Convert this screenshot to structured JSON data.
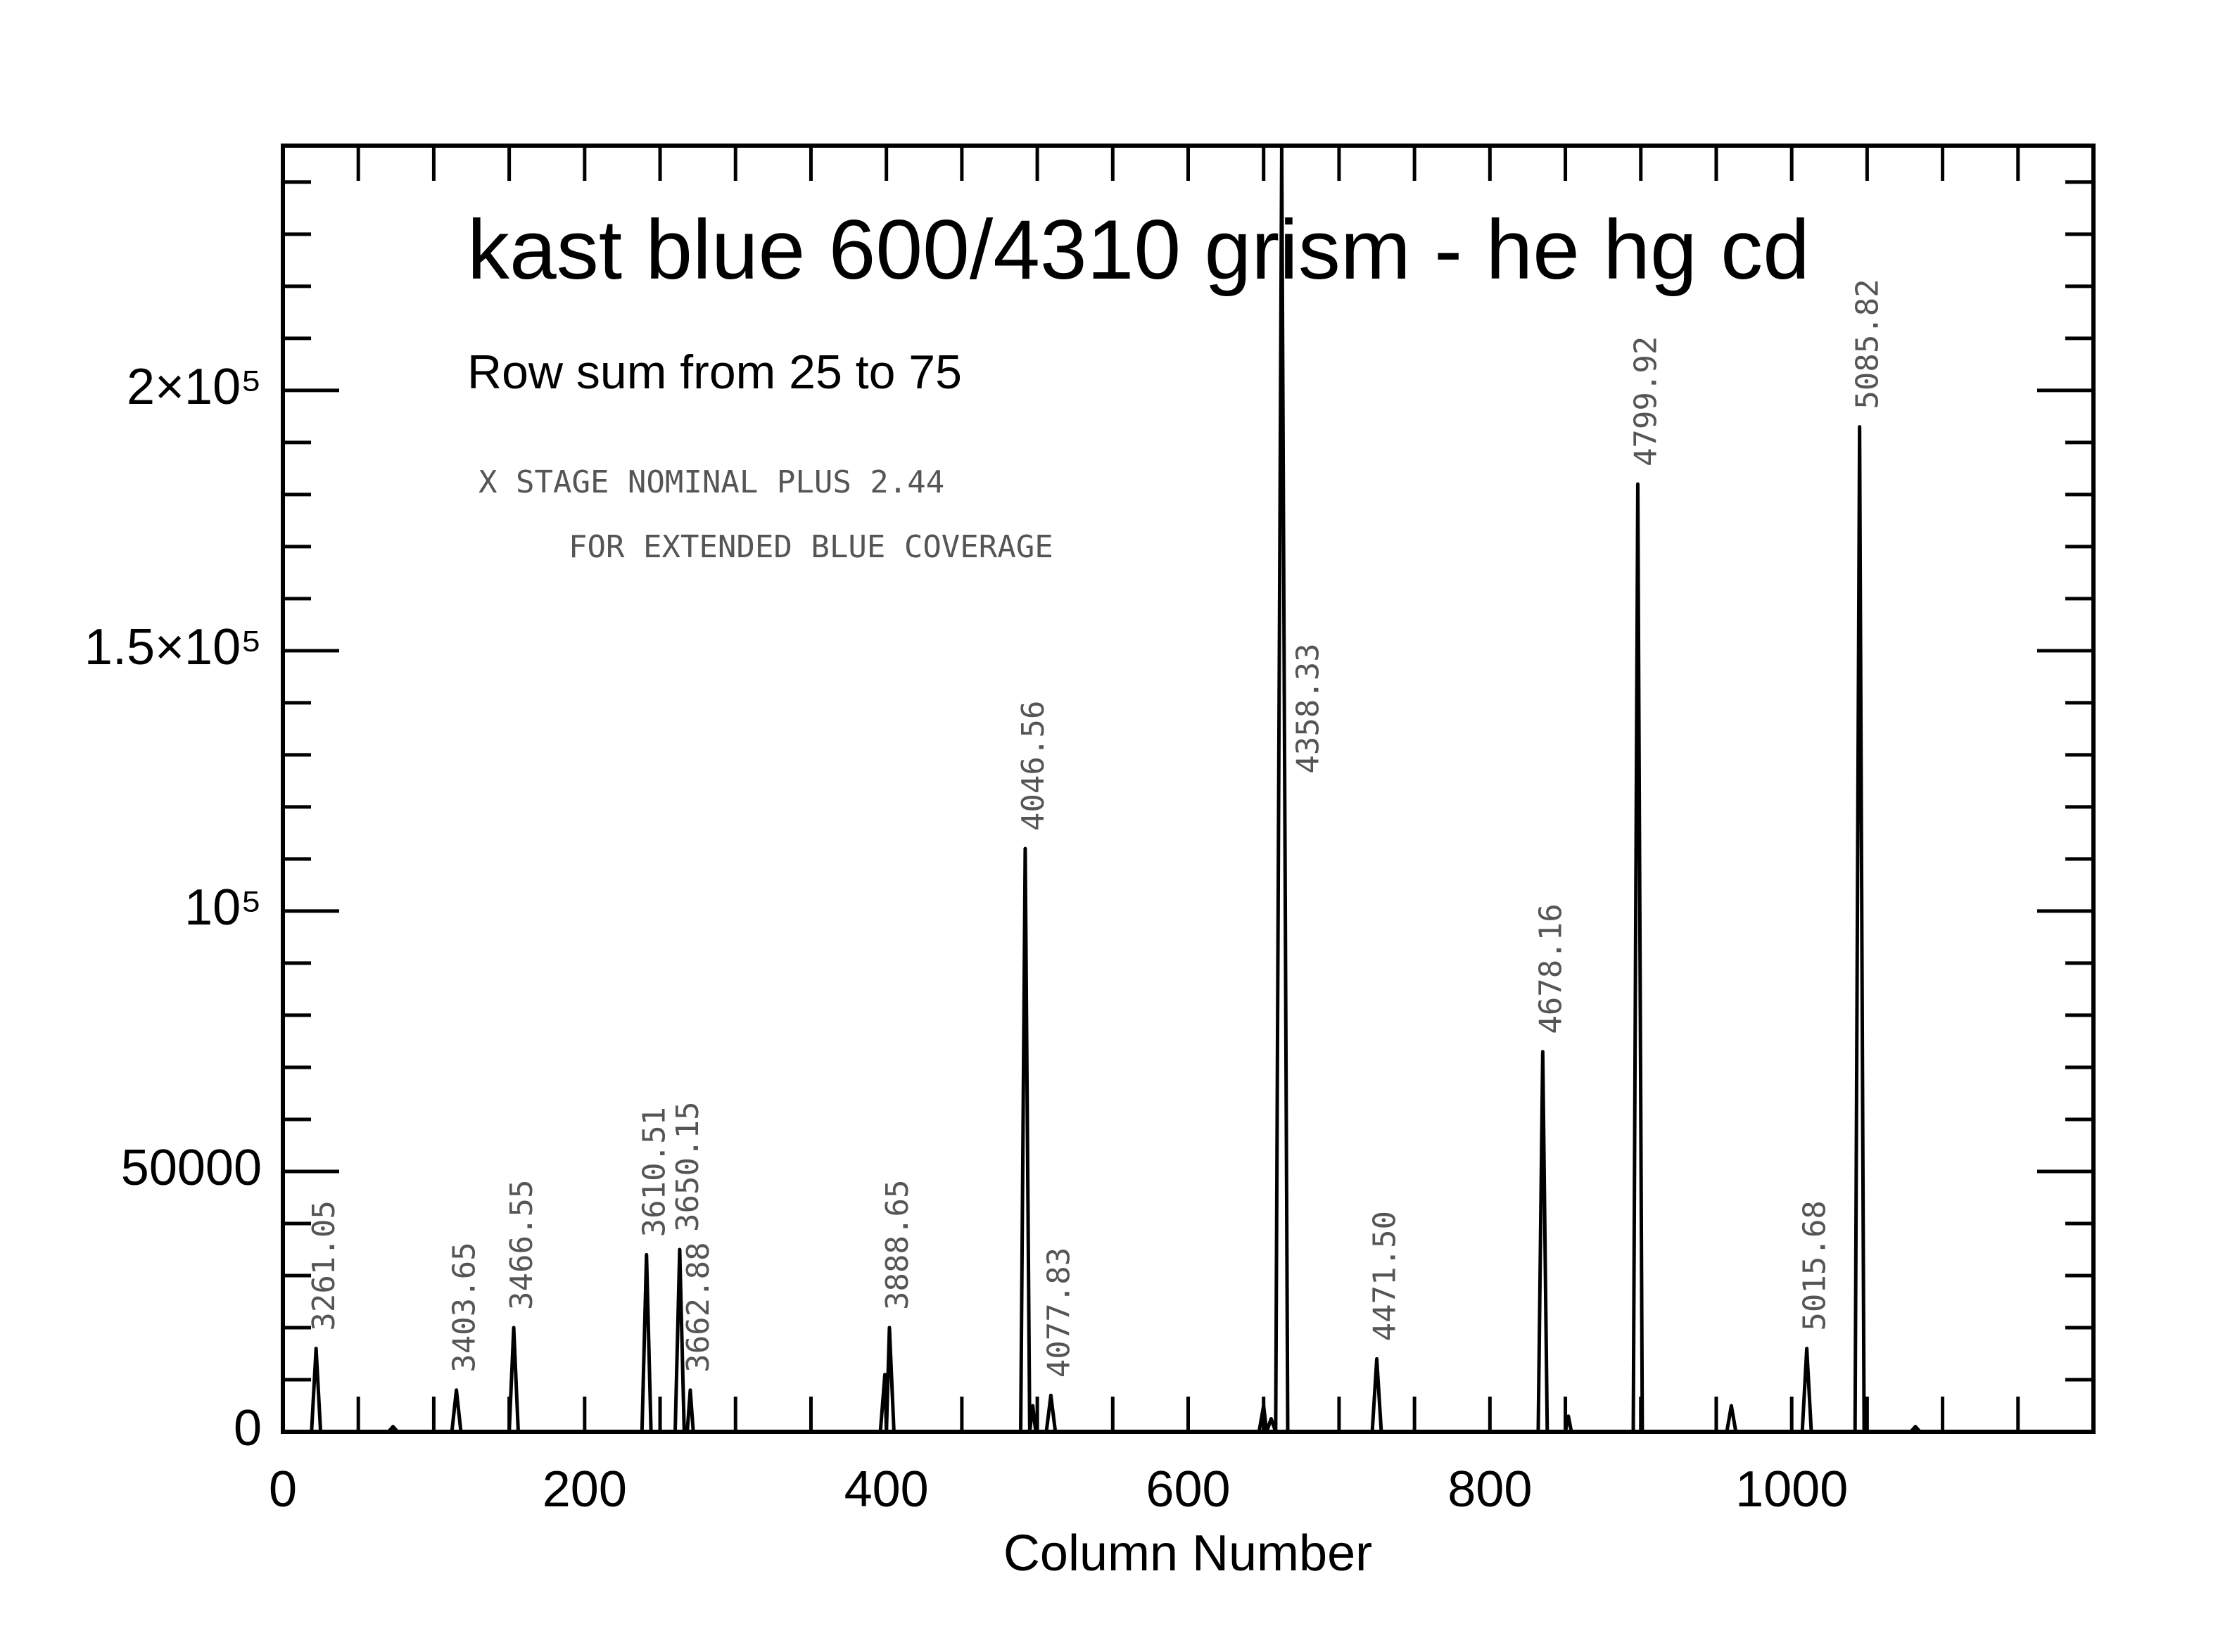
{
  "chart_data": {
    "type": "line",
    "title": "kast blue 600/4310 grism - he hg cd",
    "subtitle": "Row sum from 25 to 75",
    "notes": [
      "X STAGE NOMINAL PLUS 2.44",
      "FOR EXTENDED BLUE COVERAGE"
    ],
    "xlabel": "Column Number",
    "xlim": [
      0,
      1200
    ],
    "ylim": [
      0,
      247000
    ],
    "xticks": [
      0,
      200,
      400,
      600,
      800,
      1000
    ],
    "yticks": [
      0,
      50000,
      {
        "value": 100000,
        "label": "10⁵"
      },
      {
        "value": 150000,
        "label": "1.5×10⁵"
      },
      {
        "value": 200000,
        "label": "2×10⁵"
      }
    ],
    "xminorticks": [
      50,
      100,
      150,
      250,
      300,
      350,
      450,
      500,
      550,
      650,
      700,
      750,
      850,
      900,
      950,
      1050,
      1100,
      1150
    ],
    "yminorticks": [
      10000,
      20000,
      30000,
      40000,
      60000,
      70000,
      80000,
      90000,
      110000,
      120000,
      130000,
      140000,
      160000,
      170000,
      180000,
      190000,
      210000,
      220000,
      230000,
      240000
    ],
    "series": [
      {
        "color": "#000000",
        "x": [
          15,
          19,
          22,
          25,
          70,
          73,
          76,
          112,
          115,
          118,
          150,
          153,
          156,
          238,
          241,
          244,
          260,
          263,
          266,
          268,
          270,
          272,
          396,
          399,
          400,
          402,
          405,
          489,
          492,
          495,
          497,
          499,
          506,
          509,
          512,
          647,
          650,
          652,
          655,
          658,
          662,
          666,
          722,
          725,
          728,
          832,
          835,
          838,
          850,
          852,
          854,
          895,
          898,
          901,
          957,
          960,
          963,
          1007,
          1010,
          1013,
          1042,
          1045,
          1048,
          1079,
          1082,
          1085,
          1140
        ],
        "y": [
          0,
          0,
          16000,
          0,
          0,
          1000,
          0,
          0,
          8000,
          0,
          0,
          20000,
          0,
          0,
          34000,
          0,
          0,
          35000,
          0,
          0,
          8000,
          0,
          0,
          11000,
          0,
          20000,
          0,
          0,
          112000,
          0,
          5000,
          0,
          0,
          7000,
          0,
          0,
          5000,
          0,
          2500,
          0,
          247000,
          0,
          0,
          14000,
          0,
          0,
          73000,
          0,
          0,
          3000,
          0,
          0,
          182000,
          0,
          0,
          5000,
          0,
          0,
          16000,
          0,
          0,
          193000,
          0,
          0,
          1000,
          0,
          0
        ]
      }
    ],
    "annotations": [
      {
        "text": "3261.05",
        "x": 22
      },
      {
        "text": "3403.65",
        "x": 115
      },
      {
        "text": "3466.55",
        "x": 153
      },
      {
        "text": "3610.51",
        "x": 241
      },
      {
        "text": "3650.15",
        "x": 263
      },
      {
        "text": "3662.88",
        "x": 270
      },
      {
        "text": "3888.65",
        "x": 402
      },
      {
        "text": "4046.56",
        "x": 492
      },
      {
        "text": "4077.83",
        "x": 509
      },
      {
        "text": "4358.33",
        "x": 662
      },
      {
        "text": "4471.50",
        "x": 725
      },
      {
        "text": "4678.16",
        "x": 835
      },
      {
        "text": "4799.92",
        "x": 898
      },
      {
        "text": "5015.68",
        "x": 1010
      },
      {
        "text": "5085.82",
        "x": 1045
      }
    ]
  }
}
